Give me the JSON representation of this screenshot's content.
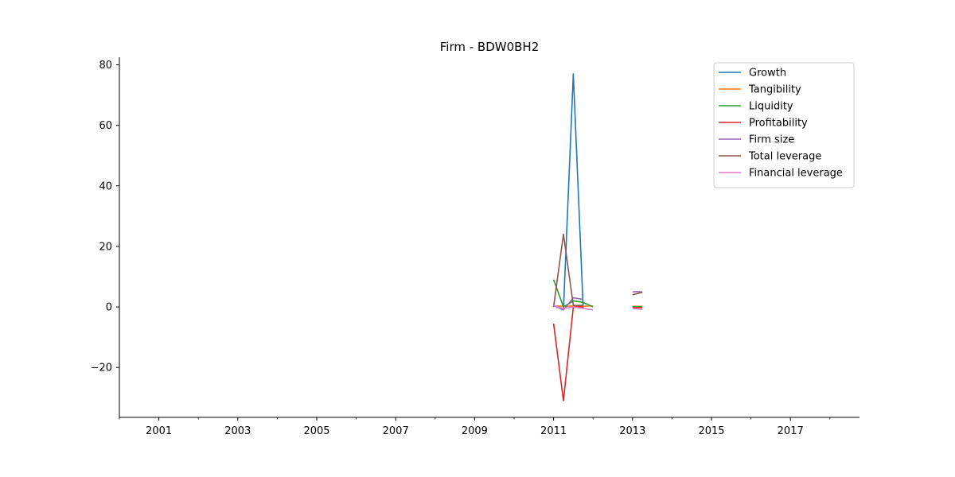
{
  "chart_data": {
    "type": "line",
    "title": "Firm - BDW0BH2",
    "xlabel": "",
    "ylabel": "",
    "xlim": [
      2000.0,
      2018.75
    ],
    "ylim": [
      -36.5,
      82.5
    ],
    "x_major_ticks": [
      2001,
      2003,
      2005,
      2007,
      2009,
      2011,
      2013,
      2015,
      2017
    ],
    "x_minor_ticks": [
      2000,
      2002,
      2004,
      2006,
      2008,
      2010,
      2012,
      2014,
      2016,
      2018
    ],
    "y_ticks": [
      -20,
      0,
      20,
      40,
      60,
      80
    ],
    "x_tick_labels": [
      "2001",
      "2003",
      "2005",
      "2007",
      "2009",
      "2011",
      "2013",
      "2015",
      "2017"
    ],
    "y_tick_labels": [
      "−20",
      "0",
      "20",
      "40",
      "60",
      "80"
    ],
    "legend_position": "top-right",
    "grid": false,
    "series": [
      {
        "name": "Growth",
        "color": "#1f77b4",
        "points": [
          [
            2011.25,
            -1.0
          ],
          [
            2011.5,
            77.0
          ],
          [
            2011.75,
            -0.5
          ],
          [
            null,
            null
          ],
          [
            2013.0,
            0.2
          ],
          [
            2013.25,
            0.2
          ]
        ]
      },
      {
        "name": "Tangibility",
        "color": "#ff7f0e",
        "points": [
          [
            2011.0,
            0.3
          ],
          [
            2011.25,
            0.3
          ],
          [
            2011.5,
            0.3
          ],
          [
            2011.75,
            0.3
          ],
          [
            2012.0,
            0.3
          ],
          [
            null,
            null
          ],
          [
            2013.0,
            0.2
          ],
          [
            2013.25,
            0.2
          ]
        ]
      },
      {
        "name": "Liquidity",
        "color": "#2ca02c",
        "points": [
          [
            2011.0,
            9.0
          ],
          [
            2011.25,
            0.0
          ],
          [
            2011.5,
            2.0
          ],
          [
            2011.75,
            1.5
          ],
          [
            2012.0,
            0.0
          ],
          [
            null,
            null
          ],
          [
            2013.0,
            0.1
          ],
          [
            2013.25,
            0.1
          ]
        ]
      },
      {
        "name": "Profitability",
        "color": "#d62728",
        "points": [
          [
            2011.0,
            -5.5
          ],
          [
            2011.25,
            -31.0
          ],
          [
            2011.5,
            0.0
          ],
          [
            2011.75,
            0.0
          ],
          [
            null,
            null
          ],
          [
            2013.0,
            -0.2
          ],
          [
            2013.25,
            -0.2
          ]
        ]
      },
      {
        "name": "Firm size",
        "color": "#9467bd",
        "points": [
          [
            2011.0,
            0.5
          ],
          [
            2011.25,
            -1.0
          ],
          [
            2011.5,
            3.0
          ],
          [
            2011.75,
            2.5
          ],
          [
            null,
            null
          ],
          [
            2013.0,
            5.0
          ],
          [
            2013.25,
            5.0
          ]
        ]
      },
      {
        "name": "Total leverage",
        "color": "#8c564b",
        "points": [
          [
            2011.0,
            0.0
          ],
          [
            2011.25,
            24.0
          ],
          [
            2011.5,
            0.5
          ],
          [
            2011.75,
            0.5
          ],
          [
            null,
            null
          ],
          [
            2013.0,
            4.0
          ],
          [
            2013.25,
            4.8
          ]
        ]
      },
      {
        "name": "Financial leverage",
        "color": "#e377c2",
        "points": [
          [
            2011.0,
            0.5
          ],
          [
            2011.25,
            -0.5
          ],
          [
            2011.5,
            0.0
          ],
          [
            2011.75,
            -0.5
          ],
          [
            2012.0,
            -1.0
          ],
          [
            null,
            null
          ],
          [
            2013.0,
            -0.5
          ],
          [
            2013.25,
            -0.8
          ]
        ]
      }
    ]
  }
}
